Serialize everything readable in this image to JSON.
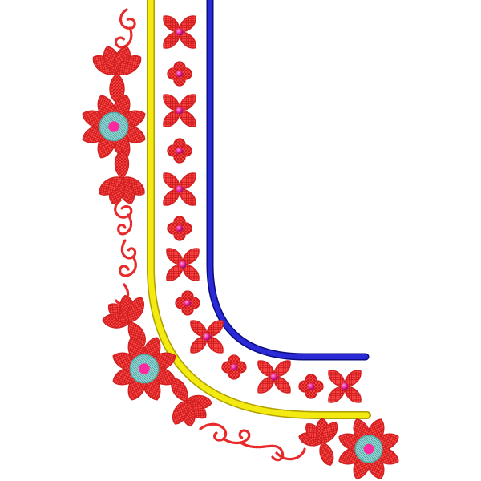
{
  "design": {
    "colors": {
      "background": "#ffffff",
      "petal": "#ff3b3b",
      "petal_stroke": "#d11f1f",
      "bead": "#e0189a",
      "bead_highlight": "#ff8fd0",
      "center_teal": "#7ec8c8",
      "center_ring": "#55aaa8",
      "center_dot": "#ff2aa0",
      "yellow_cord": "#e8e000",
      "yellow_cord_shadow": "#b8a800",
      "blue_cord": "#2222cc",
      "blue_cord_shadow": "#0c0c80",
      "vine": "#e82a2a"
    }
  }
}
